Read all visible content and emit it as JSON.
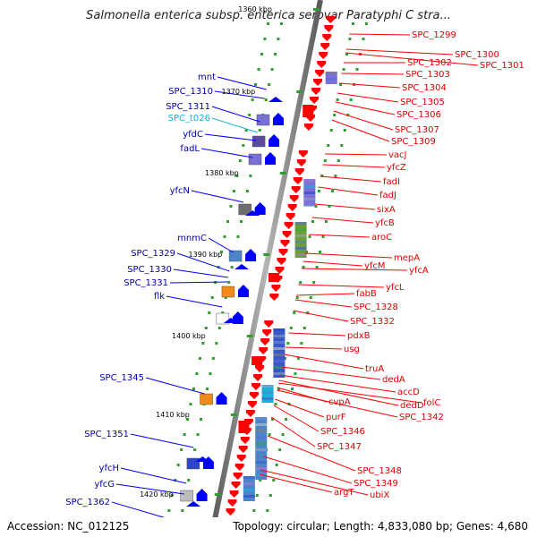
{
  "title": "Salmonella enterica subsp. enterica serovar Paratyphi C stra...",
  "accession": "Accession: NC_012125",
  "topology": "Topology: circular; Length: 4,833,080 bp; Genes: 4,680",
  "scale_labels": [
    "1360 kbp",
    "1370 kbp",
    "1380 kbp",
    "1390 kbp",
    "1400 kbp",
    "1410 kbp",
    "1420 kbp"
  ],
  "right_labels": [
    "SPC_1299",
    "SPC_1300",
    "SPC_1301",
    "SPC_1302",
    "SPC_1303",
    "SPC_1304",
    "SPC_1305",
    "SPC_1306",
    "SPC_1307",
    "SPC_1309",
    "vacJ",
    "yfcZ",
    "fadI",
    "fadJ",
    "sixA",
    "yfcB",
    "aroC",
    "mepA",
    "yfcM",
    "yfcA",
    "yfcL",
    "fabB",
    "SPC_1328",
    "SPC_1332",
    "pdxB",
    "usg",
    "truA",
    "dedA",
    "accD",
    "dedD",
    "folC",
    "cvpA",
    "SPC_1342",
    "purF",
    "SPC_1346",
    "SPC_1347",
    "SPC_1348",
    "SPC_1349",
    "ubiX",
    "argT"
  ],
  "left_labels": [
    "mnt",
    "SPC_1310",
    "SPC_1311",
    "SPC_t026",
    "yfdC",
    "fadL",
    "yfcN",
    "mnmC",
    "SPC_1329",
    "SPC_1330",
    "SPC_1331",
    "flk",
    "SPC_1345",
    "SPC_1351",
    "yfcH",
    "yfcG",
    "SPC_1362"
  ],
  "colors": {
    "forward": "#ff0000",
    "reverse": "#0000ff",
    "trna": "#1ab0d8",
    "backbone": "#808080"
  }
}
